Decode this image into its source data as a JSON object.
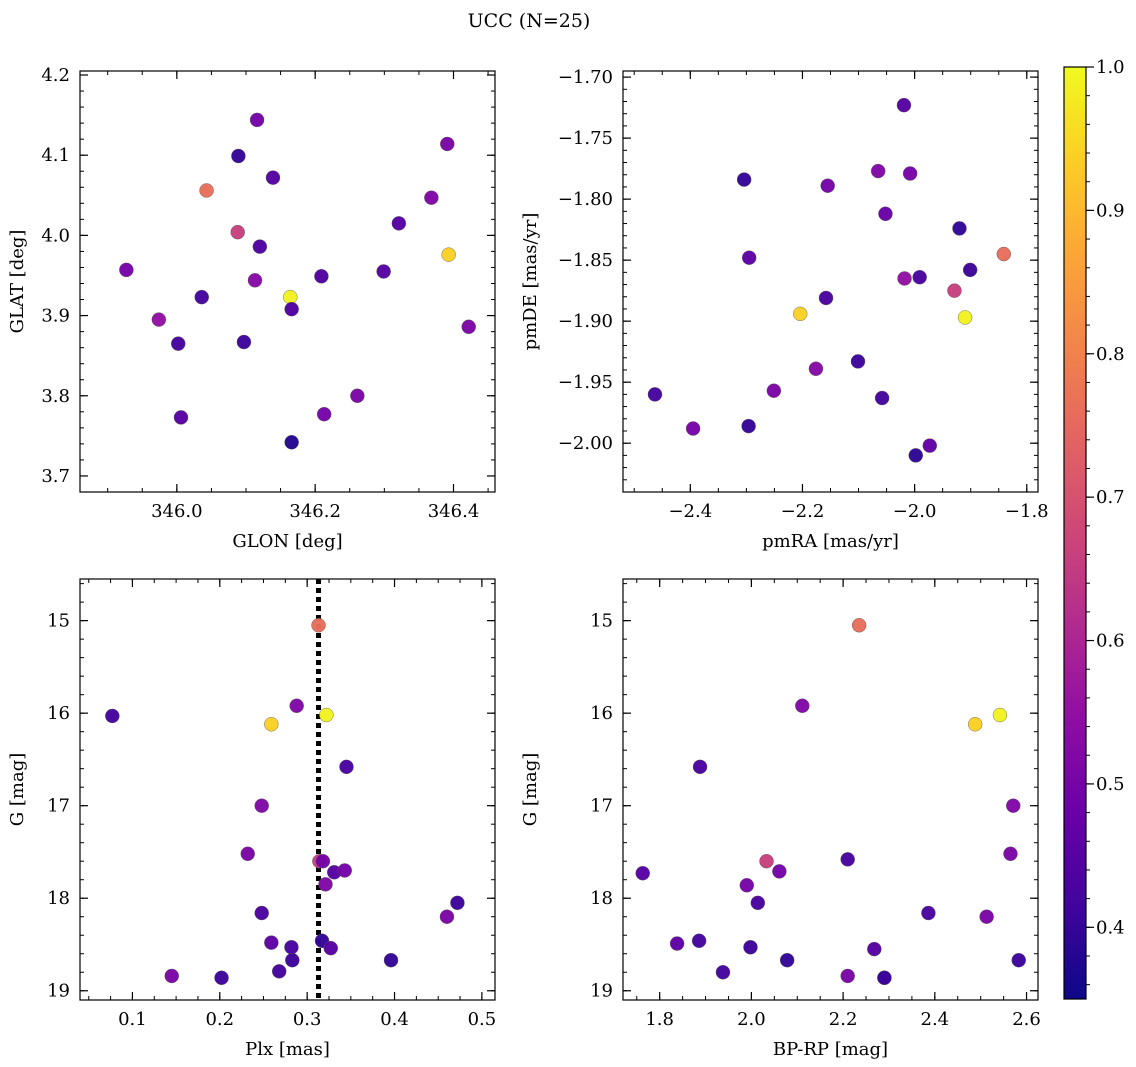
{
  "figure": {
    "title": "UCC (N=25)"
  },
  "colormap": {
    "name": "plasma",
    "range": [
      0.35,
      1.0
    ],
    "ticks": [
      0.4,
      0.5,
      0.6,
      0.7,
      0.8,
      0.9,
      1.0
    ],
    "tick_labels": [
      "0.4",
      "0.5",
      "0.6",
      "0.7",
      "0.8",
      "0.9",
      "1.0"
    ]
  },
  "chart_data": [
    {
      "type": "scatter",
      "xlabel": "GLON [deg]",
      "ylabel": "GLAT [deg]",
      "xlim": [
        345.86,
        346.46
      ],
      "ylim": [
        3.68,
        4.205
      ],
      "xticks": [
        346.0,
        346.2,
        346.4
      ],
      "xtick_labels": [
        "346.0",
        "346.2",
        "346.4"
      ],
      "yticks": [
        3.7,
        3.8,
        3.9,
        4.0,
        4.1,
        4.2
      ],
      "ytick_labels": [
        "3.7",
        "3.8",
        "3.9",
        "4.0",
        "4.1",
        "4.2"
      ],
      "points": [
        {
          "x": 346.116,
          "y": 4.144,
          "c": 0.5
        },
        {
          "x": 346.089,
          "y": 4.099,
          "c": 0.4
        },
        {
          "x": 346.139,
          "y": 4.072,
          "c": 0.45
        },
        {
          "x": 346.043,
          "y": 4.056,
          "c": 0.76
        },
        {
          "x": 346.088,
          "y": 4.004,
          "c": 0.66
        },
        {
          "x": 346.12,
          "y": 3.986,
          "c": 0.44
        },
        {
          "x": 346.113,
          "y": 3.944,
          "c": 0.53
        },
        {
          "x": 345.927,
          "y": 3.957,
          "c": 0.5
        },
        {
          "x": 346.209,
          "y": 3.949,
          "c": 0.44
        },
        {
          "x": 346.036,
          "y": 3.923,
          "c": 0.42
        },
        {
          "x": 346.164,
          "y": 3.923,
          "c": 0.99
        },
        {
          "x": 346.166,
          "y": 3.908,
          "c": 0.44
        },
        {
          "x": 346.002,
          "y": 3.865,
          "c": 0.42
        },
        {
          "x": 345.974,
          "y": 3.895,
          "c": 0.55
        },
        {
          "x": 346.097,
          "y": 3.867,
          "c": 0.41
        },
        {
          "x": 346.006,
          "y": 3.773,
          "c": 0.45
        },
        {
          "x": 346.213,
          "y": 3.777,
          "c": 0.5
        },
        {
          "x": 346.166,
          "y": 3.742,
          "c": 0.38
        },
        {
          "x": 346.261,
          "y": 3.8,
          "c": 0.51
        },
        {
          "x": 346.299,
          "y": 3.955,
          "c": 0.45
        },
        {
          "x": 346.321,
          "y": 4.015,
          "c": 0.45
        },
        {
          "x": 346.368,
          "y": 4.047,
          "c": 0.52
        },
        {
          "x": 346.391,
          "y": 4.114,
          "c": 0.51
        },
        {
          "x": 346.393,
          "y": 3.976,
          "c": 0.94
        },
        {
          "x": 346.422,
          "y": 3.886,
          "c": 0.51
        }
      ]
    },
    {
      "type": "scatter",
      "xlabel": "pmRA [mas/yr]",
      "ylabel": "pmDE [mas/yr]",
      "xlim": [
        -2.52,
        -1.78
      ],
      "ylim": [
        -2.04,
        -1.695
      ],
      "xticks": [
        -2.4,
        -2.2,
        -2.0,
        -1.8
      ],
      "xtick_labels": [
        "−2.4",
        "−2.2",
        "−2.0",
        "−1.8"
      ],
      "yticks": [
        -2.0,
        -1.95,
        -1.9,
        -1.85,
        -1.8,
        -1.75,
        -1.7
      ],
      "ytick_labels": [
        "−2.00",
        "−1.95",
        "−1.90",
        "−1.85",
        "−1.80",
        "−1.75",
        "−1.70"
      ],
      "points": [
        {
          "x": -2.019,
          "y": -1.723,
          "c": 0.45
        },
        {
          "x": -2.304,
          "y": -1.784,
          "c": 0.4
        },
        {
          "x": -2.155,
          "y": -1.789,
          "c": 0.5
        },
        {
          "x": -2.065,
          "y": -1.777,
          "c": 0.52
        },
        {
          "x": -2.008,
          "y": -1.779,
          "c": 0.5
        },
        {
          "x": -2.052,
          "y": -1.812,
          "c": 0.48
        },
        {
          "x": -1.92,
          "y": -1.824,
          "c": 0.4
        },
        {
          "x": -2.295,
          "y": -1.848,
          "c": 0.46
        },
        {
          "x": -1.841,
          "y": -1.845,
          "c": 0.76
        },
        {
          "x": -1.901,
          "y": -1.858,
          "c": 0.41
        },
        {
          "x": -2.018,
          "y": -1.865,
          "c": 0.55
        },
        {
          "x": -1.991,
          "y": -1.864,
          "c": 0.43
        },
        {
          "x": -1.929,
          "y": -1.875,
          "c": 0.66
        },
        {
          "x": -2.158,
          "y": -1.881,
          "c": 0.43
        },
        {
          "x": -2.204,
          "y": -1.894,
          "c": 0.94
        },
        {
          "x": -1.91,
          "y": -1.897,
          "c": 0.99
        },
        {
          "x": -2.101,
          "y": -1.933,
          "c": 0.41
        },
        {
          "x": -2.176,
          "y": -1.939,
          "c": 0.53
        },
        {
          "x": -2.251,
          "y": -1.957,
          "c": 0.51
        },
        {
          "x": -2.463,
          "y": -1.96,
          "c": 0.42
        },
        {
          "x": -2.058,
          "y": -1.963,
          "c": 0.42
        },
        {
          "x": -2.395,
          "y": -1.988,
          "c": 0.5
        },
        {
          "x": -2.296,
          "y": -1.986,
          "c": 0.4
        },
        {
          "x": -1.973,
          "y": -2.002,
          "c": 0.47
        },
        {
          "x": -1.998,
          "y": -2.01,
          "c": 0.39
        }
      ]
    },
    {
      "type": "scatter",
      "xlabel": "Plx [mas]",
      "ylabel": "G [mag]",
      "xlim": [
        0.04,
        0.515
      ],
      "ylim": [
        19.1,
        14.55
      ],
      "y_inverted": true,
      "xticks": [
        0.1,
        0.2,
        0.3,
        0.4,
        0.5
      ],
      "xtick_labels": [
        "0.1",
        "0.2",
        "0.3",
        "0.4",
        "0.5"
      ],
      "yticks": [
        15,
        16,
        17,
        18,
        19
      ],
      "ytick_labels": [
        "15",
        "16",
        "17",
        "18",
        "19"
      ],
      "vline": {
        "x": 0.313,
        "style": "dotted",
        "color": "#000000"
      },
      "points": [
        {
          "x": 0.313,
          "y": 15.05,
          "c": 0.76
        },
        {
          "x": 0.077,
          "y": 16.03,
          "c": 0.42
        },
        {
          "x": 0.288,
          "y": 15.92,
          "c": 0.52
        },
        {
          "x": 0.259,
          "y": 16.12,
          "c": 0.94
        },
        {
          "x": 0.322,
          "y": 16.02,
          "c": 0.99
        },
        {
          "x": 0.345,
          "y": 16.58,
          "c": 0.43
        },
        {
          "x": 0.248,
          "y": 17.0,
          "c": 0.52
        },
        {
          "x": 0.232,
          "y": 17.52,
          "c": 0.51
        },
        {
          "x": 0.314,
          "y": 17.6,
          "c": 0.66
        },
        {
          "x": 0.318,
          "y": 17.6,
          "c": 0.5
        },
        {
          "x": 0.331,
          "y": 17.72,
          "c": 0.45
        },
        {
          "x": 0.343,
          "y": 17.7,
          "c": 0.5
        },
        {
          "x": 0.321,
          "y": 17.85,
          "c": 0.52
        },
        {
          "x": 0.248,
          "y": 18.16,
          "c": 0.43
        },
        {
          "x": 0.472,
          "y": 18.05,
          "c": 0.41
        },
        {
          "x": 0.46,
          "y": 18.2,
          "c": 0.51
        },
        {
          "x": 0.259,
          "y": 18.48,
          "c": 0.46
        },
        {
          "x": 0.282,
          "y": 18.53,
          "c": 0.43
        },
        {
          "x": 0.317,
          "y": 18.46,
          "c": 0.4
        },
        {
          "x": 0.327,
          "y": 18.54,
          "c": 0.45
        },
        {
          "x": 0.283,
          "y": 18.67,
          "c": 0.41
        },
        {
          "x": 0.396,
          "y": 18.67,
          "c": 0.4
        },
        {
          "x": 0.268,
          "y": 18.79,
          "c": 0.42
        },
        {
          "x": 0.145,
          "y": 18.84,
          "c": 0.51
        },
        {
          "x": 0.202,
          "y": 18.86,
          "c": 0.41
        }
      ]
    },
    {
      "type": "scatter",
      "xlabel": "BP-RP [mag]",
      "ylabel": "G [mag]",
      "xlim": [
        1.72,
        2.625
      ],
      "ylim": [
        19.1,
        14.55
      ],
      "y_inverted": true,
      "xticks": [
        1.8,
        2.0,
        2.2,
        2.4,
        2.6
      ],
      "xtick_labels": [
        "1.8",
        "2.0",
        "2.2",
        "2.4",
        "2.6"
      ],
      "yticks": [
        15,
        16,
        17,
        18,
        19
      ],
      "ytick_labels": [
        "15",
        "16",
        "17",
        "18",
        "19"
      ],
      "points": [
        {
          "x": 2.235,
          "y": 15.05,
          "c": 0.76
        },
        {
          "x": 2.111,
          "y": 15.92,
          "c": 0.52
        },
        {
          "x": 2.488,
          "y": 16.12,
          "c": 0.94
        },
        {
          "x": 2.542,
          "y": 16.02,
          "c": 0.99
        },
        {
          "x": 1.888,
          "y": 16.58,
          "c": 0.43
        },
        {
          "x": 2.571,
          "y": 17.0,
          "c": 0.52
        },
        {
          "x": 2.565,
          "y": 17.52,
          "c": 0.51
        },
        {
          "x": 2.033,
          "y": 17.6,
          "c": 0.66
        },
        {
          "x": 2.21,
          "y": 17.58,
          "c": 0.43
        },
        {
          "x": 2.061,
          "y": 17.71,
          "c": 0.5
        },
        {
          "x": 1.763,
          "y": 17.73,
          "c": 0.45
        },
        {
          "x": 1.99,
          "y": 17.86,
          "c": 0.5
        },
        {
          "x": 2.014,
          "y": 18.05,
          "c": 0.43
        },
        {
          "x": 2.386,
          "y": 18.16,
          "c": 0.43
        },
        {
          "x": 2.513,
          "y": 18.2,
          "c": 0.51
        },
        {
          "x": 1.838,
          "y": 18.49,
          "c": 0.46
        },
        {
          "x": 1.886,
          "y": 18.46,
          "c": 0.42
        },
        {
          "x": 1.998,
          "y": 18.53,
          "c": 0.41
        },
        {
          "x": 2.268,
          "y": 18.55,
          "c": 0.45
        },
        {
          "x": 2.078,
          "y": 18.67,
          "c": 0.4
        },
        {
          "x": 2.583,
          "y": 18.67,
          "c": 0.41
        },
        {
          "x": 1.938,
          "y": 18.8,
          "c": 0.42
        },
        {
          "x": 2.21,
          "y": 18.84,
          "c": 0.51
        },
        {
          "x": 2.29,
          "y": 18.86,
          "c": 0.41
        },
        {
          "x": 2.29,
          "y": 18.86,
          "c": 0.41
        }
      ]
    }
  ]
}
